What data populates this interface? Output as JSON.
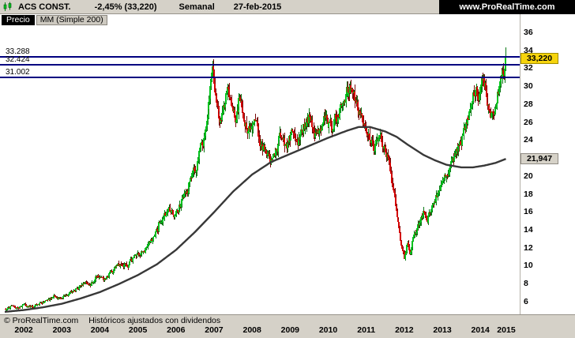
{
  "header": {
    "symbol": "ACS CONST.",
    "change": "-2,45% (33,220)",
    "timeframe": "Semanal",
    "date": "27-feb-2015",
    "site": "www.ProRealTime.com"
  },
  "legend": {
    "price": "Precio",
    "indicator": "MM (Simple 200)"
  },
  "axis": {
    "current_price_label": "33,220",
    "ma_price_label": "21,947"
  },
  "footer": {
    "copyright": "© ProRealTime.com",
    "note": "Históricos ajustados con dividendos"
  },
  "colors": {
    "up_body": "#00c41e",
    "up_wick": "#0b7a16",
    "down_body": "#d40000",
    "down_wick": "#7a0b0b",
    "ma_line": "#383838",
    "level_line": "#000080",
    "badge_current_bg": "#f6d40c",
    "badge_ma_bg": "#d6d2c8"
  },
  "chart_data": {
    "type": "candlestick",
    "instrument": "ACS CONST.",
    "timeframe": "weekly",
    "last_date": "27-feb-2015",
    "last_close": 33.22,
    "change_pct": -2.45,
    "ma_period": 200,
    "ma_last": 21.947,
    "levels": [
      {
        "label": "33.288",
        "value": 33.288
      },
      {
        "label": "32.424",
        "value": 32.424
      },
      {
        "label": "31.002",
        "value": 31.002
      }
    ],
    "x_range": [
      2002,
      2015.45
    ],
    "y_range": [
      4.8,
      36.4
    ],
    "x_ticks": [
      "2002",
      "2003",
      "2004",
      "2005",
      "2006",
      "2007",
      "2008",
      "2009",
      "2010",
      "2011",
      "2012",
      "2013",
      "2014",
      "2015"
    ],
    "y_ticks": [
      36,
      34,
      32,
      30,
      28,
      26,
      24,
      22,
      20,
      18,
      16,
      14,
      12,
      10,
      8,
      6
    ],
    "price_path": [
      [
        2002.0,
        5.2
      ],
      [
        2002.2,
        5.5
      ],
      [
        2002.35,
        5.2
      ],
      [
        2002.5,
        5.7
      ],
      [
        2002.7,
        5.4
      ],
      [
        2002.9,
        5.9
      ],
      [
        2003.1,
        6.1
      ],
      [
        2003.3,
        6.6
      ],
      [
        2003.5,
        6.4
      ],
      [
        2003.7,
        7.0
      ],
      [
        2003.9,
        7.6
      ],
      [
        2004.1,
        8.2
      ],
      [
        2004.25,
        8.0
      ],
      [
        2004.4,
        8.8
      ],
      [
        2004.6,
        8.5
      ],
      [
        2004.8,
        9.3
      ],
      [
        2005.0,
        10.2
      ],
      [
        2005.2,
        10.0
      ],
      [
        2005.4,
        11.0
      ],
      [
        2005.6,
        11.6
      ],
      [
        2005.8,
        12.4
      ],
      [
        2006.0,
        14.0
      ],
      [
        2006.15,
        15.5
      ],
      [
        2006.3,
        16.5
      ],
      [
        2006.45,
        15.8
      ],
      [
        2006.6,
        16.8
      ],
      [
        2006.75,
        18.0
      ],
      [
        2006.9,
        19.5
      ],
      [
        2007.05,
        21.5
      ],
      [
        2007.2,
        23.5
      ],
      [
        2007.3,
        26.0
      ],
      [
        2007.4,
        29.5
      ],
      [
        2007.48,
        31.8
      ],
      [
        2007.55,
        28.5
      ],
      [
        2007.65,
        26.0
      ],
      [
        2007.75,
        28.0
      ],
      [
        2007.85,
        29.5
      ],
      [
        2007.95,
        28.0
      ],
      [
        2008.05,
        26.5
      ],
      [
        2008.15,
        28.5
      ],
      [
        2008.25,
        27.5
      ],
      [
        2008.4,
        25.0
      ],
      [
        2008.55,
        26.5
      ],
      [
        2008.7,
        24.0
      ],
      [
        2008.85,
        22.5
      ],
      [
        2009.0,
        21.5
      ],
      [
        2009.1,
        22.5
      ],
      [
        2009.25,
        24.5
      ],
      [
        2009.4,
        23.0
      ],
      [
        2009.55,
        25.0
      ],
      [
        2009.7,
        24.0
      ],
      [
        2009.85,
        25.5
      ],
      [
        2010.0,
        26.5
      ],
      [
        2010.15,
        24.5
      ],
      [
        2010.3,
        25.5
      ],
      [
        2010.45,
        27.0
      ],
      [
        2010.6,
        25.5
      ],
      [
        2010.75,
        27.0
      ],
      [
        2010.9,
        28.5
      ],
      [
        2011.0,
        29.5
      ],
      [
        2011.1,
        30.0
      ],
      [
        2011.25,
        28.0
      ],
      [
        2011.4,
        26.5
      ],
      [
        2011.55,
        24.5
      ],
      [
        2011.7,
        23.0
      ],
      [
        2011.85,
        24.5
      ],
      [
        2012.0,
        23.0
      ],
      [
        2012.1,
        21.0
      ],
      [
        2012.2,
        19.0
      ],
      [
        2012.3,
        16.0
      ],
      [
        2012.4,
        13.0
      ],
      [
        2012.5,
        10.8
      ],
      [
        2012.58,
        12.8
      ],
      [
        2012.66,
        11.5
      ],
      [
        2012.75,
        13.5
      ],
      [
        2012.85,
        14.5
      ],
      [
        2013.0,
        16.0
      ],
      [
        2013.1,
        15.0
      ],
      [
        2013.25,
        17.0
      ],
      [
        2013.4,
        18.5
      ],
      [
        2013.55,
        19.5
      ],
      [
        2013.7,
        21.0
      ],
      [
        2013.85,
        22.5
      ],
      [
        2014.0,
        24.0
      ],
      [
        2014.1,
        25.5
      ],
      [
        2014.25,
        28.0
      ],
      [
        2014.35,
        30.0
      ],
      [
        2014.45,
        28.5
      ],
      [
        2014.55,
        31.0
      ],
      [
        2014.65,
        29.5
      ],
      [
        2014.75,
        27.5
      ],
      [
        2014.85,
        26.0
      ],
      [
        2014.95,
        28.5
      ],
      [
        2015.05,
        30.5
      ],
      [
        2015.12,
        32.0
      ],
      [
        2015.17,
        33.22
      ]
    ],
    "ma_path": [
      [
        2002.0,
        4.9
      ],
      [
        2002.5,
        5.1
      ],
      [
        2003.0,
        5.4
      ],
      [
        2003.5,
        5.8
      ],
      [
        2004.0,
        6.4
      ],
      [
        2004.5,
        7.1
      ],
      [
        2005.0,
        8.0
      ],
      [
        2005.5,
        9.0
      ],
      [
        2006.0,
        10.2
      ],
      [
        2006.5,
        11.8
      ],
      [
        2007.0,
        13.8
      ],
      [
        2007.5,
        16.0
      ],
      [
        2008.0,
        18.3
      ],
      [
        2008.5,
        20.2
      ],
      [
        2009.0,
        21.6
      ],
      [
        2009.5,
        22.5
      ],
      [
        2010.0,
        23.4
      ],
      [
        2010.5,
        24.3
      ],
      [
        2011.0,
        25.1
      ],
      [
        2011.3,
        25.5
      ],
      [
        2011.6,
        25.5
      ],
      [
        2012.0,
        25.0
      ],
      [
        2012.3,
        24.4
      ],
      [
        2012.6,
        23.5
      ],
      [
        2013.0,
        22.4
      ],
      [
        2013.3,
        21.8
      ],
      [
        2013.6,
        21.3
      ],
      [
        2014.0,
        21.0
      ],
      [
        2014.3,
        21.0
      ],
      [
        2014.6,
        21.2
      ],
      [
        2014.9,
        21.5
      ],
      [
        2015.17,
        21.947
      ]
    ]
  }
}
